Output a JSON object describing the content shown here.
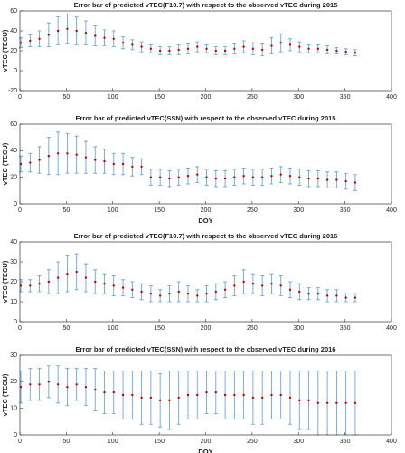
{
  "chart_data": [
    {
      "type": "errorbar",
      "title": "Error bar of predicted vTEC(F10.7) with respect to the observed vTEC during 2015",
      "ylabel": "vTEC (TECU)",
      "x": [
        1,
        11,
        21,
        31,
        41,
        51,
        61,
        71,
        81,
        91,
        101,
        111,
        121,
        131,
        141,
        151,
        161,
        171,
        181,
        191,
        201,
        211,
        221,
        231,
        241,
        251,
        261,
        271,
        281,
        291,
        301,
        311,
        321,
        331,
        341,
        351,
        361
      ],
      "series": [
        {
          "color": "#c00000",
          "error_color": "#5b9bd5",
          "values": [
            28,
            30,
            32,
            36,
            40,
            42,
            40,
            38,
            35,
            33,
            32,
            28,
            26,
            24,
            22,
            20,
            20,
            21,
            22,
            24,
            22,
            20,
            20,
            22,
            24,
            22,
            21,
            25,
            28,
            26,
            24,
            22,
            22,
            21,
            20,
            19,
            18
          ],
          "errors": [
            5,
            6,
            8,
            12,
            14,
            15,
            14,
            12,
            10,
            8,
            8,
            6,
            5,
            5,
            4,
            4,
            4,
            5,
            5,
            5,
            4,
            4,
            4,
            5,
            6,
            6,
            6,
            8,
            9,
            6,
            5,
            4,
            4,
            4,
            3,
            3,
            3
          ]
        }
      ],
      "xlim": [
        0,
        400
      ],
      "xticks": [
        0,
        50,
        100,
        150,
        200,
        250,
        300,
        350,
        400
      ],
      "ylim": [
        -20,
        60
      ],
      "yticks": [
        -20,
        0,
        20,
        40,
        60
      ]
    },
    {
      "type": "errorbar",
      "title": "Error bar of predicted vTEC(SSN) with respect to the observed vTEC during 2015",
      "ylabel": "vTEC (TECU)",
      "xlabel": "DOY",
      "x": [
        1,
        11,
        21,
        31,
        41,
        51,
        61,
        71,
        81,
        91,
        101,
        111,
        121,
        131,
        141,
        151,
        161,
        171,
        181,
        191,
        201,
        211,
        221,
        231,
        241,
        251,
        261,
        271,
        281,
        291,
        301,
        311,
        321,
        331,
        341,
        351,
        361
      ],
      "series": [
        {
          "color": "#c00000",
          "error_color": "#5b9bd5",
          "values": [
            30,
            31,
            33,
            36,
            38,
            38,
            37,
            35,
            33,
            32,
            30,
            30,
            28,
            28,
            20,
            20,
            19,
            20,
            21,
            22,
            20,
            19,
            19,
            20,
            21,
            20,
            20,
            21,
            22,
            21,
            20,
            19,
            19,
            18,
            18,
            17,
            16
          ],
          "errors": [
            6,
            7,
            10,
            14,
            16,
            15,
            14,
            12,
            10,
            9,
            8,
            8,
            7,
            6,
            6,
            6,
            6,
            6,
            6,
            6,
            6,
            6,
            6,
            6,
            6,
            6,
            6,
            6,
            6,
            6,
            6,
            6,
            6,
            6,
            6,
            6,
            6
          ]
        }
      ],
      "xlim": [
        0,
        400
      ],
      "xticks": [
        0,
        50,
        100,
        150,
        200,
        250,
        300,
        350,
        400
      ],
      "ylim": [
        0,
        60
      ],
      "yticks": [
        0,
        20,
        40,
        60
      ]
    },
    {
      "type": "errorbar",
      "title": "Error bar of predicted vTEC(F10.7) with respect to the observed vTEC during 2016",
      "ylabel": "vTEC (TECU)",
      "x": [
        1,
        11,
        21,
        31,
        41,
        51,
        61,
        71,
        81,
        91,
        101,
        111,
        121,
        131,
        141,
        151,
        161,
        171,
        181,
        191,
        201,
        211,
        221,
        231,
        241,
        251,
        261,
        271,
        281,
        291,
        301,
        311,
        321,
        331,
        341,
        351,
        361
      ],
      "series": [
        {
          "color": "#c00000",
          "error_color": "#5b9bd5",
          "values": [
            18,
            18,
            19,
            20,
            22,
            24,
            25,
            22,
            20,
            19,
            18,
            17,
            16,
            15,
            14,
            13,
            14,
            15,
            14,
            13,
            14,
            15,
            16,
            18,
            20,
            19,
            18,
            19,
            18,
            16,
            15,
            14,
            14,
            13,
            13,
            12,
            12
          ],
          "errors": [
            3,
            3,
            4,
            6,
            8,
            9,
            9,
            7,
            6,
            5,
            5,
            4,
            4,
            4,
            4,
            3,
            4,
            5,
            4,
            3,
            4,
            4,
            4,
            5,
            6,
            5,
            5,
            5,
            5,
            4,
            4,
            3,
            3,
            3,
            3,
            2,
            2
          ]
        }
      ],
      "xlim": [
        0,
        400
      ],
      "xticks": [
        0,
        50,
        100,
        150,
        200,
        250,
        300,
        350,
        400
      ],
      "ylim": [
        0,
        40
      ],
      "yticks": [
        0,
        10,
        20,
        30,
        40
      ]
    },
    {
      "type": "errorbar",
      "title": "Error bar of predicted vTEC(SSN) with respect to the observed vTEC during 2016",
      "ylabel": "vTEC (TECU)",
      "xlabel": "DOY",
      "x": [
        1,
        11,
        21,
        31,
        41,
        51,
        61,
        71,
        81,
        91,
        101,
        111,
        121,
        131,
        141,
        151,
        161,
        171,
        181,
        191,
        201,
        211,
        221,
        231,
        241,
        251,
        261,
        271,
        281,
        291,
        301,
        311,
        321,
        331,
        341,
        351,
        361
      ],
      "series": [
        {
          "color": "#c00000",
          "error_color": "#5b9bd5",
          "values": [
            18,
            19,
            19,
            20,
            19,
            18,
            19,
            18,
            17,
            16,
            16,
            15,
            15,
            14,
            14,
            13,
            13,
            14,
            15,
            15,
            16,
            16,
            15,
            15,
            15,
            14,
            14,
            15,
            15,
            14,
            13,
            13,
            12,
            12,
            12,
            12,
            12
          ],
          "errors": [
            6,
            6,
            6,
            6,
            7,
            7,
            6,
            7,
            8,
            8,
            8,
            9,
            9,
            10,
            10,
            10,
            11,
            10,
            9,
            9,
            8,
            8,
            9,
            9,
            9,
            10,
            10,
            9,
            9,
            10,
            11,
            11,
            12,
            12,
            12,
            12,
            12
          ]
        }
      ],
      "xlim": [
        0,
        400
      ],
      "xticks": [
        0,
        50,
        100,
        150,
        200,
        250,
        300,
        350,
        400
      ],
      "ylim": [
        0,
        30
      ],
      "yticks": [
        0,
        10,
        20,
        30
      ]
    }
  ]
}
